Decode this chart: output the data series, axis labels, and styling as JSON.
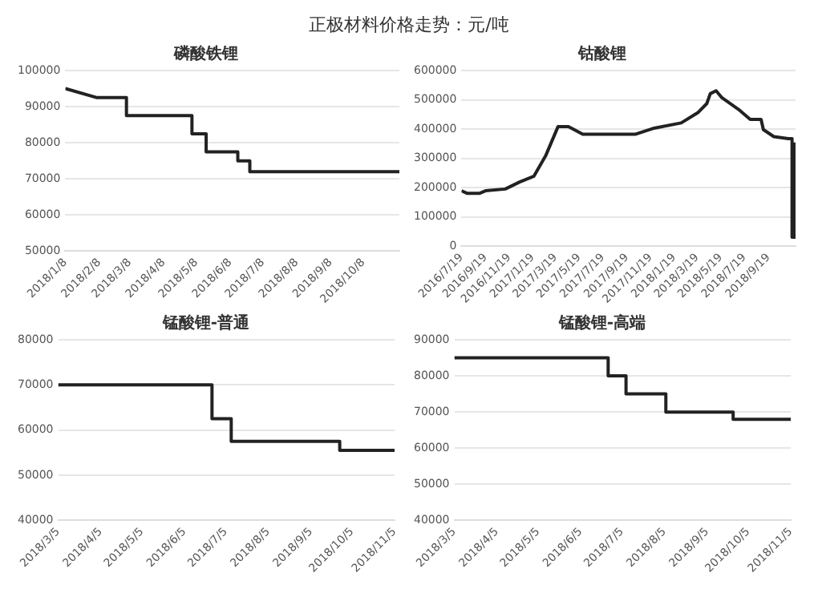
{
  "chart_data": [
    {
      "type": "line",
      "title": "磷酸铁锂",
      "annotations": [
        "正极材料价格走势：元/吨"
      ],
      "color": "#222222",
      "grid": "y",
      "legend": false,
      "marker": "none",
      "x": [
        "2018-01-08",
        "2018-02-06",
        "2018-03-05",
        "2018-03-05",
        "2018-05-04",
        "2018-05-04",
        "2018-05-17",
        "2018-05-17",
        "2018-06-15",
        "2018-06-15",
        "2018-06-26",
        "2018-06-26",
        "2018-11-10"
      ],
      "values": [
        95000,
        92500,
        92500,
        87500,
        87500,
        82500,
        82500,
        77500,
        77500,
        75000,
        75000,
        72000,
        72000
      ],
      "xlim": [
        "2018-01-08",
        "2018-11-10"
      ],
      "xticks": [
        {
          "value": "2018-01-08",
          "label": "2018/1/8"
        },
        {
          "value": "2018-02-08",
          "label": "2018/2/8"
        },
        {
          "value": "2018-03-08",
          "label": "2018/3/8"
        },
        {
          "value": "2018-04-08",
          "label": "2018/4/8"
        },
        {
          "value": "2018-05-08",
          "label": "2018/5/8"
        },
        {
          "value": "2018-06-08",
          "label": "2018/6/8"
        },
        {
          "value": "2018-07-08",
          "label": "2018/7/8"
        },
        {
          "value": "2018-08-08",
          "label": "2018/8/8"
        },
        {
          "value": "2018-09-08",
          "label": "2018/9/8"
        },
        {
          "value": "2018-10-08",
          "label": "2018/10/8"
        }
      ],
      "ylim": [
        50000,
        100000
      ],
      "yticks": [
        50000,
        60000,
        70000,
        80000,
        90000,
        100000
      ]
    },
    {
      "type": "line",
      "title": "钴酸锂",
      "color": "#222222",
      "grid": "y",
      "legend": false,
      "marker": "none",
      "x": [
        "2016-07-19",
        "2016-08-03",
        "2016-09-03",
        "2016-09-19",
        "2016-11-09",
        "2016-12-16",
        "2017-01-22",
        "2017-02-21",
        "2017-03-25",
        "2017-04-21",
        "2017-05-28",
        "2017-10-10",
        "2017-11-25",
        "2018-02-06",
        "2018-03-22",
        "2018-04-13",
        "2018-04-22",
        "2018-05-07",
        "2018-05-22",
        "2018-07-04",
        "2018-08-03",
        "2018-08-31",
        "2018-09-06",
        "2018-10-03",
        "2018-11-09",
        "2018-11-19",
        "2018-11-19",
        "2018-11-24",
        "2018-11-26"
      ],
      "values": [
        189000,
        180000,
        180000,
        189000,
        195000,
        219000,
        239000,
        308000,
        408000,
        408000,
        382000,
        382000,
        402000,
        421000,
        457000,
        487000,
        521000,
        531000,
        507000,
        467000,
        433000,
        433000,
        398000,
        374000,
        367000,
        367000,
        30000,
        30000,
        354000
      ],
      "xlim": [
        "2016-07-19",
        "2018-11-28"
      ],
      "xticks": [
        {
          "value": "2016-07-19",
          "label": "2016/7/19"
        },
        {
          "value": "2016-09-19",
          "label": "2016/9/19"
        },
        {
          "value": "2016-11-19",
          "label": "2016/11/19"
        },
        {
          "value": "2017-01-19",
          "label": "2017/1/19"
        },
        {
          "value": "2017-03-19",
          "label": "2017/3/19"
        },
        {
          "value": "2017-05-19",
          "label": "2017/5/19"
        },
        {
          "value": "2017-07-19",
          "label": "2017/7/19"
        },
        {
          "value": "2017-09-19",
          "label": "2017/9/19"
        },
        {
          "value": "2017-11-19",
          "label": "2017/11/19"
        },
        {
          "value": "2018-01-19",
          "label": "2018/1/19"
        },
        {
          "value": "2018-03-19",
          "label": "2018/3/19"
        },
        {
          "value": "2018-05-19",
          "label": "2018/5/19"
        },
        {
          "value": "2018-07-19",
          "label": "2018/7/19"
        },
        {
          "value": "2018-09-19",
          "label": "2018/9/19"
        }
      ],
      "ylim": [
        0,
        600000
      ],
      "yticks": [
        0,
        100000,
        200000,
        300000,
        400000,
        500000,
        600000
      ]
    },
    {
      "type": "line",
      "title": "锰酸锂-普通",
      "color": "#222222",
      "grid": "y",
      "legend": false,
      "marker": "none",
      "x": [
        "2018-03-05",
        "2018-06-25",
        "2018-06-25",
        "2018-07-09",
        "2018-07-09",
        "2018-09-26",
        "2018-09-26",
        "2018-11-05"
      ],
      "values": [
        70000,
        70000,
        62500,
        62500,
        57500,
        57500,
        55500,
        55500
      ],
      "xlim": [
        "2018-03-05",
        "2018-11-05"
      ],
      "xticks": [
        {
          "value": "2018-03-05",
          "label": "2018/3/5"
        },
        {
          "value": "2018-04-05",
          "label": "2018/4/5"
        },
        {
          "value": "2018-05-05",
          "label": "2018/5/5"
        },
        {
          "value": "2018-06-05",
          "label": "2018/6/5"
        },
        {
          "value": "2018-07-05",
          "label": "2018/7/5"
        },
        {
          "value": "2018-08-05",
          "label": "2018/8/5"
        },
        {
          "value": "2018-09-05",
          "label": "2018/9/5"
        },
        {
          "value": "2018-10-05",
          "label": "2018/10/5"
        },
        {
          "value": "2018-11-05",
          "label": "2018/11/5"
        }
      ],
      "ylim": [
        40000,
        80000
      ],
      "yticks": [
        40000,
        50000,
        60000,
        70000,
        80000
      ]
    },
    {
      "type": "line",
      "title": "锰酸锂-高端",
      "color": "#222222",
      "grid": "y",
      "legend": false,
      "marker": "none",
      "x": [
        "2018-03-05",
        "2018-06-25",
        "2018-06-25",
        "2018-07-08",
        "2018-07-08",
        "2018-08-06",
        "2018-08-06",
        "2018-09-24",
        "2018-09-24",
        "2018-11-05"
      ],
      "values": [
        85000,
        85000,
        80000,
        80000,
        75000,
        75000,
        70000,
        70000,
        68000,
        68000
      ],
      "xlim": [
        "2018-03-05",
        "2018-11-05"
      ],
      "xticks": [
        {
          "value": "2018-03-05",
          "label": "2018/3/5"
        },
        {
          "value": "2018-04-05",
          "label": "2018/4/5"
        },
        {
          "value": "2018-05-05",
          "label": "2018/5/5"
        },
        {
          "value": "2018-06-05",
          "label": "2018/6/5"
        },
        {
          "value": "2018-07-05",
          "label": "2018/7/5"
        },
        {
          "value": "2018-08-05",
          "label": "2018/8/5"
        },
        {
          "value": "2018-09-05",
          "label": "2018/9/5"
        },
        {
          "value": "2018-10-05",
          "label": "2018/10/5"
        },
        {
          "value": "2018-11-05",
          "label": "2018/11/5"
        }
      ],
      "ylim": [
        40000,
        90000
      ],
      "yticks": [
        40000,
        50000,
        60000,
        70000,
        80000,
        90000
      ]
    }
  ]
}
